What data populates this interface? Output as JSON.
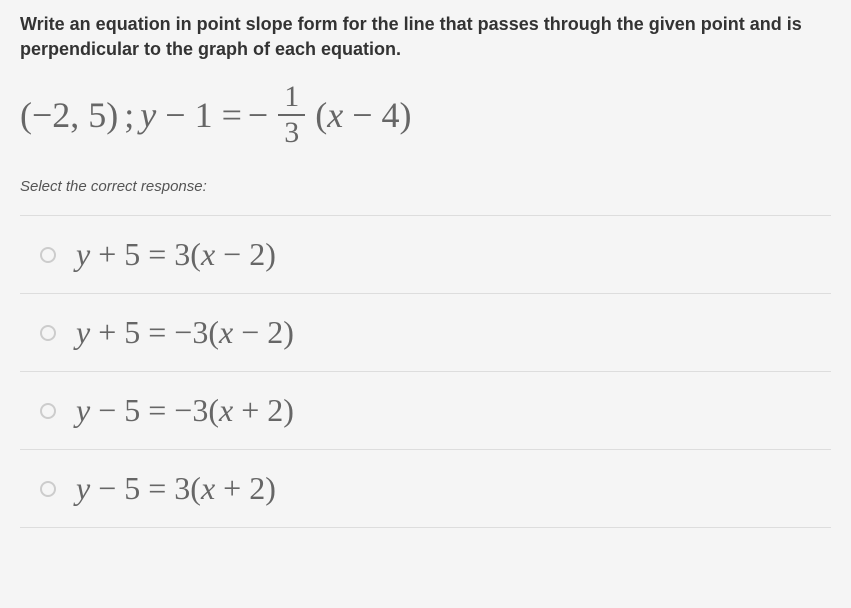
{
  "instructions": "Write an equation in point slope form for the line that passes through the given point and is perpendicular to the graph of each equation.",
  "given": {
    "point": "(−2, 5)",
    "separator": ";",
    "eq_left": "y − 1 =",
    "neg_sign": "−",
    "frac_num": "1",
    "frac_den": "3",
    "eq_right": "(x − 4)"
  },
  "select_text": "Select the correct response:",
  "options": [
    {
      "y_part": "y",
      "left_rest": " + 5 = 3(",
      "x_part": "x",
      "right_rest": " − 2)"
    },
    {
      "y_part": "y",
      "left_rest": " + 5 = −3(",
      "x_part": "x",
      "right_rest": " − 2)"
    },
    {
      "y_part": "y",
      "left_rest": " − 5 = −3(",
      "x_part": "x",
      "right_rest": " + 2)"
    },
    {
      "y_part": "y",
      "left_rest": " − 5 = 3(",
      "x_part": "x",
      "right_rest": " + 2)"
    }
  ],
  "colors": {
    "text_primary": "#333333",
    "text_equation": "#666666",
    "background": "#f5f5f5",
    "border": "#dddddd",
    "radio_border": "#cccccc"
  },
  "typography": {
    "instruction_fontsize": 18,
    "equation_fontsize": 36,
    "option_fontsize": 32,
    "select_fontsize": 15
  }
}
